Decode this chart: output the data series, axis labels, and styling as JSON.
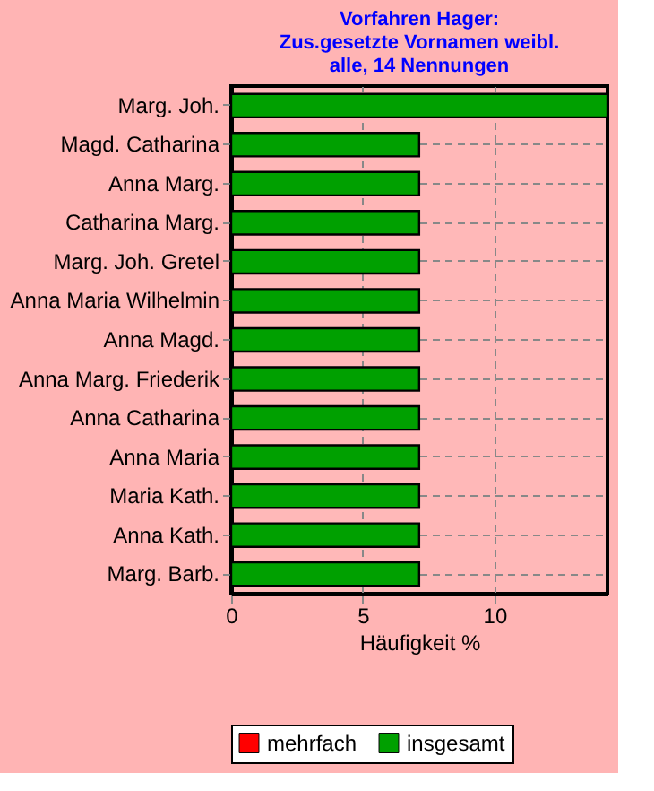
{
  "chart_data": {
    "type": "bar",
    "orientation": "horizontal",
    "title": [
      "Vorfahren Hager:",
      "Zus.gesetzte Vornamen weibl.",
      "alle, 14 Nennungen"
    ],
    "xlabel": "Häufigkeit %",
    "categories": [
      "Marg. Joh.",
      "Magd. Catharina",
      "Anna Marg.",
      "Catharina Marg.",
      "Marg. Joh. Gretel",
      "Anna Maria Wilhelmin",
      "Anna Magd.",
      "Anna Marg. Friederik",
      "Anna Catharina",
      "Anna Maria",
      "Maria Kath.",
      "Anna Kath.",
      "Marg. Barb."
    ],
    "series": [
      {
        "name": "mehrfach",
        "color": "#ff0000",
        "values": [
          null,
          null,
          null,
          null,
          null,
          null,
          null,
          null,
          null,
          null,
          null,
          null,
          null
        ]
      },
      {
        "name": "insgesamt",
        "color": "#00a000",
        "values": [
          14.29,
          7.14,
          7.14,
          7.14,
          7.14,
          7.14,
          7.14,
          7.14,
          7.14,
          7.14,
          7.14,
          7.14,
          7.14
        ]
      }
    ],
    "xlim": [
      0,
      14.29
    ],
    "xticks": [
      0,
      5,
      10
    ],
    "grid": true,
    "legend": "bottom"
  }
}
